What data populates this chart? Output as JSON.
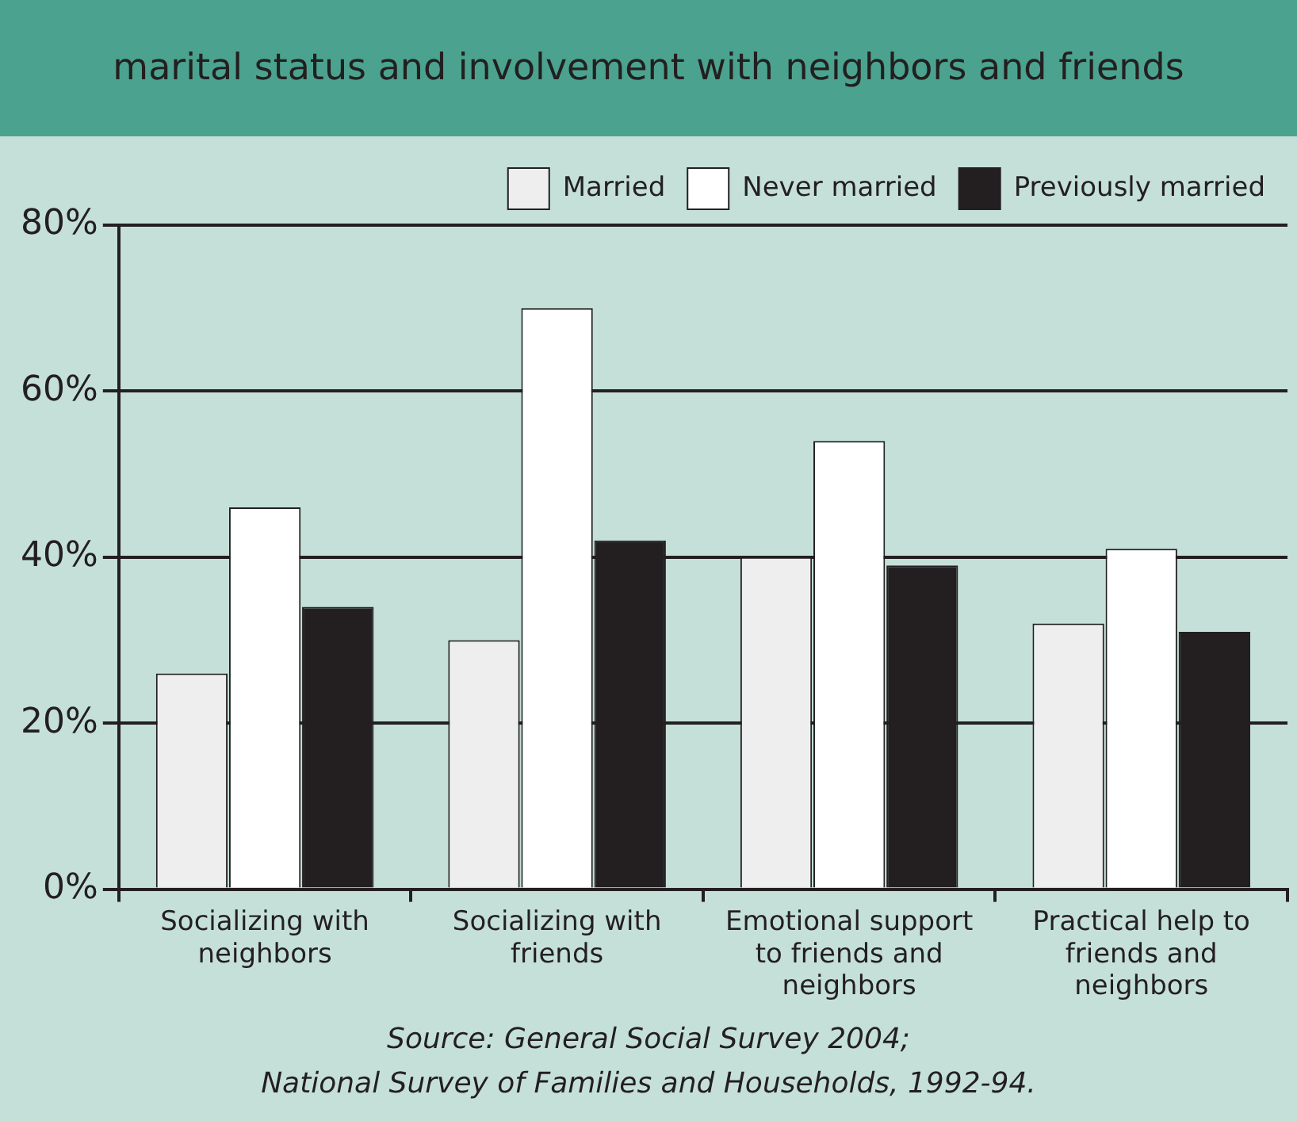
{
  "chart_data": {
    "type": "bar",
    "title": "marital status and involvement with neighbors and friends",
    "categories": [
      "Socializing with neighbors",
      "Socializing with friends",
      "Emotional support to friends and neighbors",
      "Practical help to friends and neighbors"
    ],
    "series": [
      {
        "name": "Married",
        "color": "#eeeeee",
        "values": [
          26,
          30,
          40,
          32
        ]
      },
      {
        "name": "Never married",
        "color": "#ffffff",
        "values": [
          46,
          70,
          54,
          41
        ]
      },
      {
        "name": "Previously married",
        "color": "#231f20",
        "values": [
          34,
          42,
          39,
          31
        ]
      }
    ],
    "ylim": [
      0,
      80
    ],
    "yticks": [
      {
        "value": 0,
        "label": "0%"
      },
      {
        "value": 20,
        "label": "20%"
      },
      {
        "value": 40,
        "label": "40%"
      },
      {
        "value": 60,
        "label": "60%"
      },
      {
        "value": 80,
        "label": "80%"
      }
    ],
    "grid": "y",
    "legend": "top right",
    "annotations": [
      "Source: General Social Survey 2004;",
      "National Survey of Families and Households, 1992-94."
    ]
  }
}
